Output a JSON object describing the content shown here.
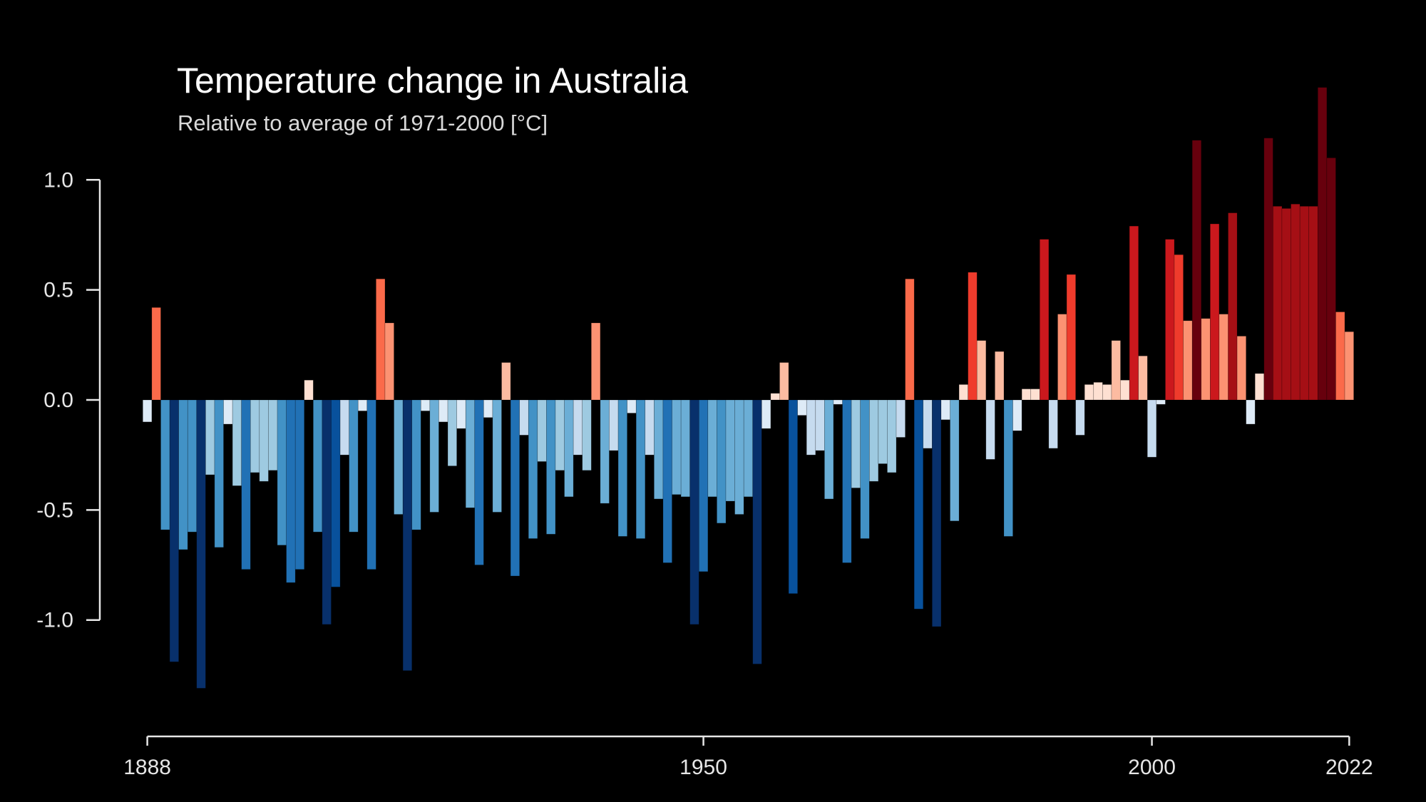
{
  "chart_data": {
    "type": "bar",
    "title": "Temperature change in Australia",
    "subtitle": "Relative to average of 1971-2000  [°C]",
    "xlabel": "",
    "ylabel": "",
    "x_start": 1888,
    "x_end": 2022,
    "ylim": [
      -1.35,
      1.45
    ],
    "yticks": [
      1.0,
      0.5,
      0.0,
      -0.5,
      -1.0
    ],
    "ytick_labels": [
      "1.0",
      "0.5",
      "0.0",
      "-0.5",
      "-1.0"
    ],
    "xticks": [
      1888,
      1950,
      2000,
      2022
    ],
    "xtick_labels": [
      "1888",
      "1950",
      "2000",
      "2022"
    ],
    "grid": false,
    "values": [
      -0.1,
      0.42,
      -0.59,
      -1.19,
      -0.68,
      -0.6,
      -1.31,
      -0.34,
      -0.67,
      -0.11,
      -0.39,
      -0.77,
      -0.33,
      -0.37,
      -0.32,
      -0.66,
      -0.83,
      -0.77,
      0.09,
      -0.6,
      -1.02,
      -0.85,
      -0.25,
      -0.6,
      -0.05,
      -0.77,
      0.55,
      0.35,
      -0.52,
      -1.23,
      -0.59,
      -0.05,
      -0.51,
      -0.1,
      -0.3,
      -0.13,
      -0.49,
      -0.75,
      -0.08,
      -0.51,
      0.17,
      -0.8,
      -0.16,
      -0.63,
      -0.28,
      -0.61,
      -0.32,
      -0.44,
      -0.25,
      -0.32,
      0.35,
      -0.47,
      -0.23,
      -0.62,
      -0.06,
      -0.63,
      -0.25,
      -0.45,
      -0.74,
      -0.43,
      -0.44,
      -1.02,
      -0.78,
      -0.44,
      -0.56,
      -0.46,
      -0.52,
      -0.44,
      -1.2,
      -0.13,
      0.03,
      0.17,
      -0.88,
      -0.07,
      -0.25,
      -0.23,
      -0.45,
      -0.02,
      -0.74,
      -0.4,
      -0.63,
      -0.37,
      -0.29,
      -0.33,
      -0.17,
      0.55,
      -0.95,
      -0.22,
      -1.03,
      -0.09,
      -0.55,
      0.07,
      0.58,
      0.27,
      -0.27,
      0.22,
      -0.62,
      -0.14,
      0.05,
      0.05,
      0.73,
      -0.22,
      0.39,
      0.57,
      -0.16,
      0.07,
      0.08,
      0.07,
      0.27,
      0.09,
      0.79,
      0.2,
      -0.26,
      -0.02,
      0.73,
      0.66,
      0.36,
      1.18,
      0.37,
      0.8,
      0.39,
      0.85,
      0.29,
      -0.11,
      0.12,
      1.19,
      0.88,
      0.87,
      0.89,
      0.88,
      0.88,
      1.42,
      1.1,
      0.4,
      0.31
    ],
    "color_scale": {
      "negative": [
        {
          "below": -0.95,
          "color": "#08306b"
        },
        {
          "below": -0.83,
          "color": "#08519c"
        },
        {
          "below": -0.7,
          "color": "#2171b5"
        },
        {
          "below": -0.55,
          "color": "#4292c6"
        },
        {
          "below": -0.4,
          "color": "#6baed6"
        },
        {
          "below": -0.27,
          "color": "#9ecae1"
        },
        {
          "below": -0.14,
          "color": "#c6dbef"
        },
        {
          "below": 0.0,
          "color": "#deebf7"
        }
      ],
      "positive": [
        {
          "atleast": 1.0,
          "color": "#67000d"
        },
        {
          "atleast": 0.83,
          "color": "#a50f15"
        },
        {
          "atleast": 0.7,
          "color": "#cb181d"
        },
        {
          "atleast": 0.56,
          "color": "#ef3b2c"
        },
        {
          "atleast": 0.4,
          "color": "#fb6a4a"
        },
        {
          "atleast": 0.28,
          "color": "#fc9272"
        },
        {
          "atleast": 0.15,
          "color": "#fcbba1"
        },
        {
          "atleast": 0.0,
          "color": "#fee0d2"
        }
      ]
    }
  }
}
